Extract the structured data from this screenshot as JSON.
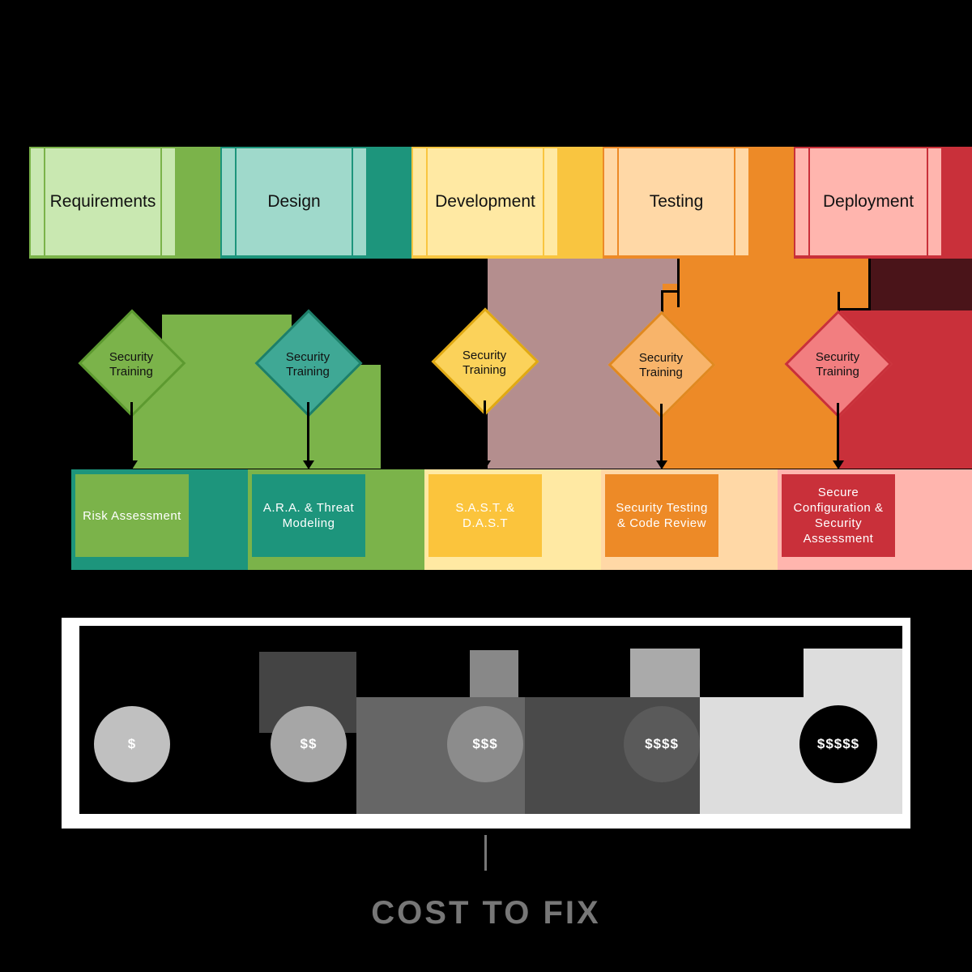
{
  "phases": [
    {
      "label": "Requirements",
      "fill": "#c9e8b1",
      "border": "#7bb34a",
      "band": "#7bb34a"
    },
    {
      "label": "Design",
      "fill": "#9fd9cb",
      "border": "#1d957c",
      "band": "#1d957c"
    },
    {
      "label": "Development",
      "fill": "#ffe9a3",
      "border": "#f9c540",
      "band": "#f9c540"
    },
    {
      "label": "Testing",
      "fill": "#ffd8a6",
      "border": "#ed8a27",
      "band": "#ed8a27"
    },
    {
      "label": "Deployment",
      "fill": "#ffb5ae",
      "border": "#c9303a",
      "band": "#c9303a"
    }
  ],
  "gates": [
    {
      "label_line1": "Security",
      "label_line2": "Training",
      "fill": "#7bb34a",
      "border": "#5d9a30"
    },
    {
      "label_line1": "Security",
      "label_line2": "Training",
      "fill": "#3fa895",
      "border": "#1d7f69"
    },
    {
      "label_line1": "Security",
      "label_line2": "Training",
      "fill": "#fbd25a",
      "border": "#e0a913"
    },
    {
      "label_line1": "Security",
      "label_line2": "Training",
      "fill": "#f8b46a",
      "border": "#e08920"
    },
    {
      "label_line1": "Security",
      "label_line2": "Training",
      "fill": "#f27e80",
      "border": "#c9303a"
    }
  ],
  "activities": [
    {
      "label": "Risk Assessment",
      "fill": "#7bb34a"
    },
    {
      "label": "A.R.A. & Threat Modeling",
      "fill": "#1d957c"
    },
    {
      "label": "S.A.S.T. & D.A.S.T",
      "fill": "#fbc43c"
    },
    {
      "label": "Security Testing & Code Review",
      "fill": "#ed8a27"
    },
    {
      "label": "Secure Configuration & Security Assessment",
      "fill": "#c9303a"
    }
  ],
  "costs": [
    {
      "label": "$",
      "fill": "#c0c0c0"
    },
    {
      "label": "$$",
      "fill": "#a6a6a6"
    },
    {
      "label": "$$$",
      "fill": "#8c8c8c"
    },
    {
      "label": "$$$$",
      "fill": "#5a5a5a"
    },
    {
      "label": "$$$$$",
      "fill": "#000000"
    }
  ],
  "cost_title": "COST TO FIX"
}
